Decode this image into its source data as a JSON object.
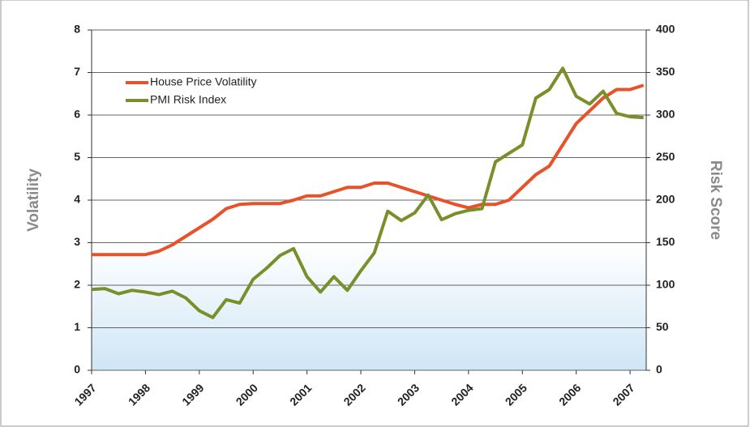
{
  "chart_data": {
    "type": "line",
    "x": [
      1997,
      1997.25,
      1997.5,
      1997.75,
      1998,
      1998.25,
      1998.5,
      1998.75,
      1999,
      1999.25,
      1999.5,
      1999.75,
      2000,
      2000.25,
      2000.5,
      2000.75,
      2001,
      2001.25,
      2001.5,
      2001.75,
      2002,
      2002.25,
      2002.5,
      2002.75,
      2003,
      2003.25,
      2003.5,
      2003.75,
      2004,
      2004.25,
      2004.5,
      2004.75,
      2005,
      2005.25,
      2005.5,
      2005.75,
      2006,
      2006.25,
      2006.5,
      2006.75,
      2007,
      2007.25
    ],
    "series": [
      {
        "name": "House Price Volatility",
        "color": "#e8522a",
        "values": [
          2.72,
          2.72,
          2.72,
          2.72,
          2.72,
          2.8,
          2.95,
          3.15,
          3.35,
          3.55,
          3.8,
          3.9,
          3.92,
          3.92,
          3.92,
          4.0,
          4.1,
          4.1,
          4.2,
          4.3,
          4.3,
          4.4,
          4.4,
          4.3,
          4.2,
          4.1,
          4.0,
          3.9,
          3.82,
          3.9,
          3.9,
          4.0,
          4.3,
          4.6,
          4.8,
          5.3,
          5.8,
          6.1,
          6.4,
          6.6,
          6.6,
          6.7
        ]
      },
      {
        "name": "PMI Risk Index",
        "color": "#7a8f2a",
        "axis": "y2",
        "values": [
          95,
          96,
          90,
          94,
          92,
          89,
          93,
          85,
          70,
          62,
          83,
          79,
          107,
          120,
          135,
          143,
          110,
          92,
          110,
          94,
          117,
          138,
          187,
          176,
          185,
          206,
          177,
          184,
          188,
          190,
          245,
          255,
          265,
          320,
          330,
          355,
          322,
          313,
          328,
          302,
          298,
          297
        ]
      }
    ],
    "ylabel": "Volatility",
    "y2label": "Risk Score",
    "xlim": [
      1997,
      2007.3
    ],
    "xticks": [
      1997,
      1998,
      1999,
      2000,
      2001,
      2002,
      2003,
      2004,
      2005,
      2006,
      2007
    ],
    "ylim": [
      0,
      8
    ],
    "yticks": [
      0,
      1,
      2,
      3,
      4,
      5,
      6,
      7,
      8
    ],
    "y2lim": [
      0,
      400
    ],
    "y2ticks": [
      0,
      50,
      100,
      150,
      200,
      250,
      300,
      350,
      400
    ],
    "grid": true,
    "legend": "upper left"
  }
}
